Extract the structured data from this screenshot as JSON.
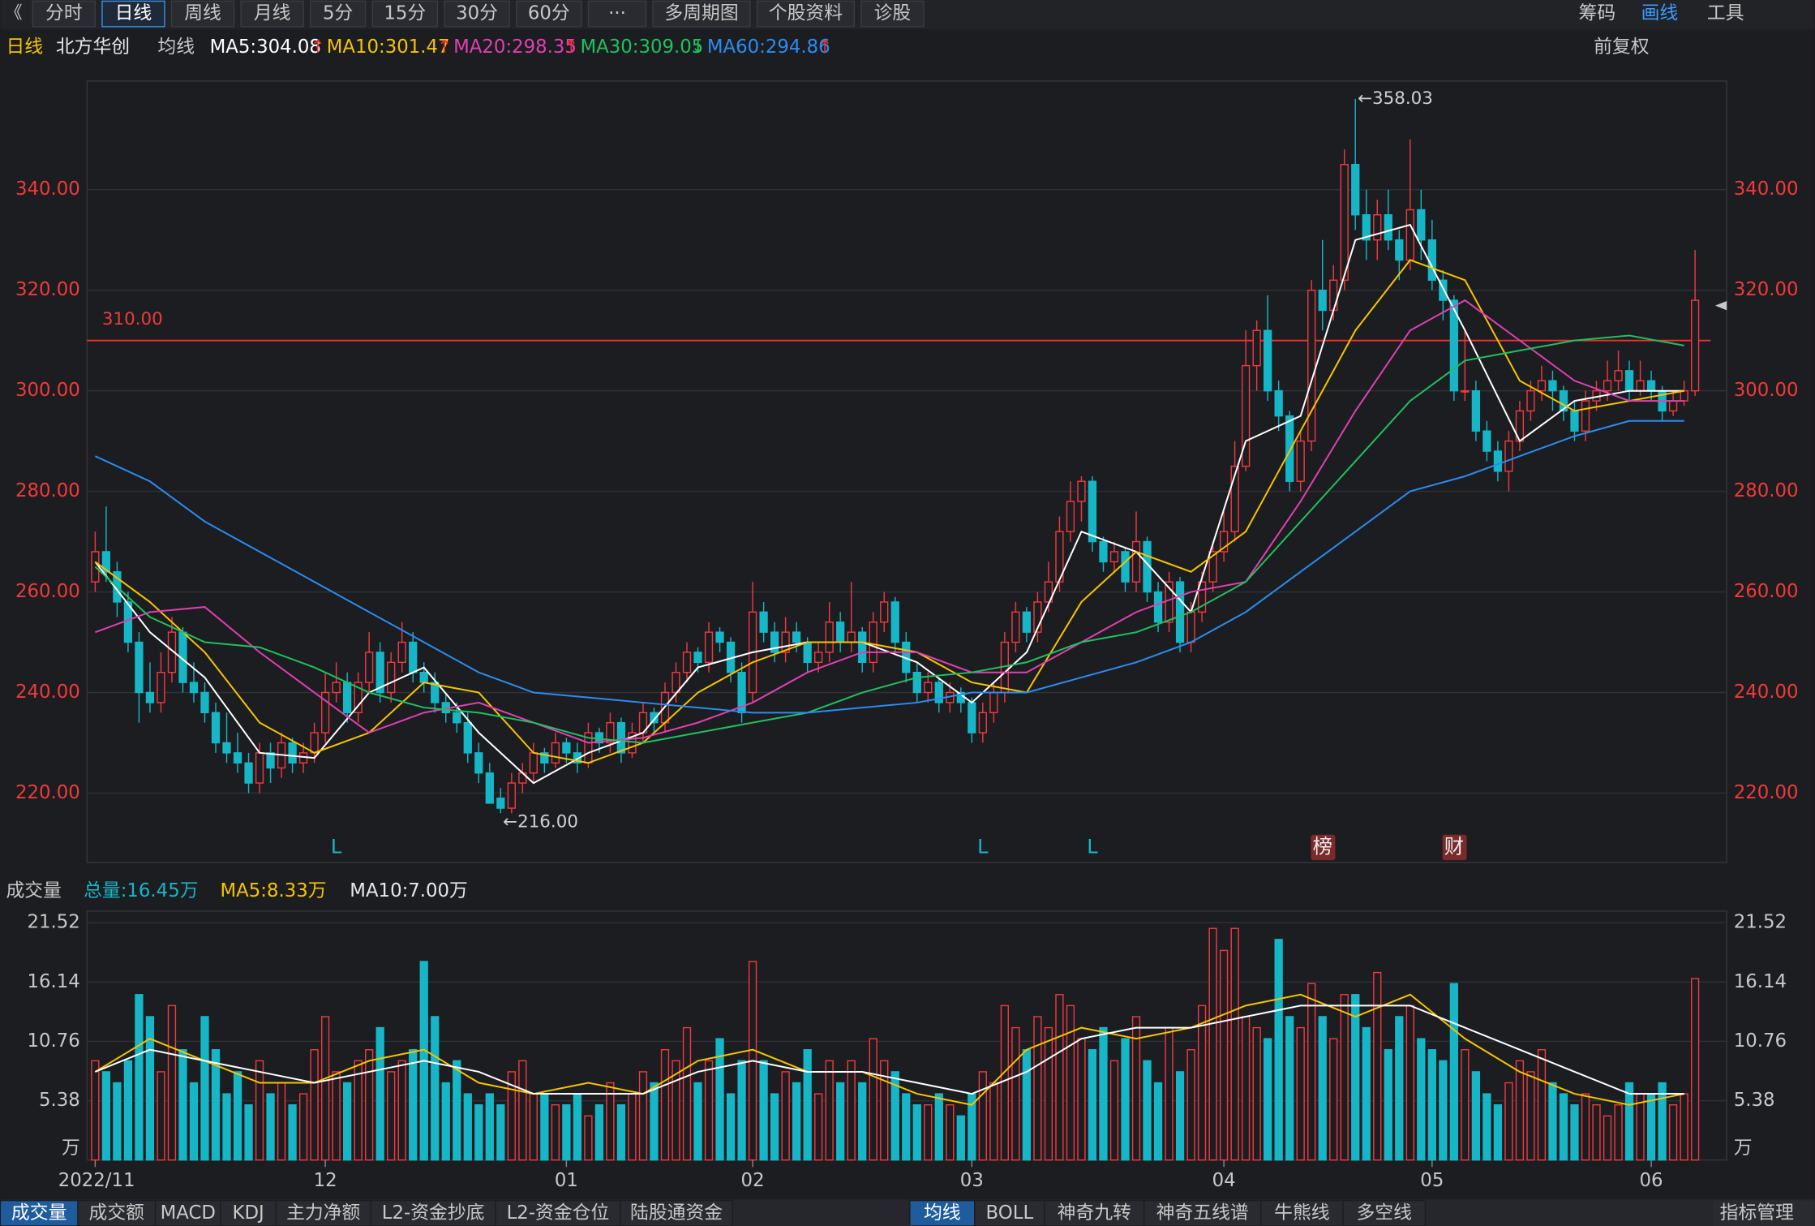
{
  "toolbar": {
    "tabs": [
      "分时",
      "日线",
      "周线",
      "月线",
      "5分",
      "15分",
      "30分",
      "60分",
      "···",
      "多周期图",
      "个股资料",
      "诊股"
    ],
    "active": 1,
    "right": [
      "筹码",
      "画线",
      "工具"
    ]
  },
  "info": {
    "period": "日线",
    "stock": "北方华创",
    "ma_label": "均线",
    "adjust": "前复权",
    "mas": [
      {
        "label": "MA5:304.08",
        "arrow": "↑",
        "color": "#ffffff"
      },
      {
        "label": "MA10:301.47",
        "arrow": "↑",
        "color": "#f5c400"
      },
      {
        "label": "MA20:298.35",
        "arrow": "↑",
        "color": "#e040b0"
      },
      {
        "label": "MA30:309.05",
        "arrow": "↓",
        "color": "#20c060"
      },
      {
        "label": "MA60:294.86",
        "arrow": "↑",
        "color": "#2a8cf0"
      }
    ]
  },
  "chart_data": {
    "type": "candlestick",
    "ylim": [
      206.2,
      361.6
    ],
    "yticks": [
      {
        "value": 220,
        "label": "220.00"
      },
      {
        "value": 240,
        "label": "240.00"
      },
      {
        "value": 260,
        "label": "260.00"
      },
      {
        "value": 280,
        "label": "280.00"
      },
      {
        "value": 300,
        "label": "300.00"
      },
      {
        "value": 320,
        "label": "320.00"
      },
      {
        "value": 340,
        "label": "340.00"
      }
    ],
    "x_labels": [
      {
        "index": 0,
        "label": "2022/11"
      },
      {
        "index": 21,
        "label": "12"
      },
      {
        "index": 43,
        "label": "01"
      },
      {
        "index": 60,
        "label": "02"
      },
      {
        "index": 80,
        "label": "03"
      },
      {
        "index": 103,
        "label": "04"
      },
      {
        "index": 122,
        "label": "05"
      },
      {
        "index": 142,
        "label": "06"
      }
    ],
    "up_color": "#f0393f",
    "down_color": "#16b6c6",
    "candles": [
      [
        262,
        272,
        260,
        268
      ],
      [
        268,
        277,
        262,
        264
      ],
      [
        264,
        266,
        255,
        258
      ],
      [
        258,
        260,
        248,
        250
      ],
      [
        250,
        252,
        234,
        240
      ],
      [
        240,
        246,
        236,
        238
      ],
      [
        238,
        248,
        236,
        244
      ],
      [
        244,
        255,
        242,
        252
      ],
      [
        252,
        253,
        240,
        242
      ],
      [
        242,
        246,
        238,
        240
      ],
      [
        240,
        242,
        234,
        236
      ],
      [
        236,
        238,
        228,
        230
      ],
      [
        230,
        236,
        226,
        228
      ],
      [
        228,
        232,
        224,
        226
      ],
      [
        226,
        228,
        220,
        222
      ],
      [
        222,
        230,
        220,
        228
      ],
      [
        228,
        230,
        222,
        225
      ],
      [
        225,
        232,
        223,
        230
      ],
      [
        230,
        231,
        224,
        226
      ],
      [
        226,
        230,
        224,
        228
      ],
      [
        228,
        234,
        226,
        232
      ],
      [
        232,
        244,
        230,
        240
      ],
      [
        240,
        246,
        238,
        242
      ],
      [
        242,
        244,
        234,
        236
      ],
      [
        236,
        244,
        234,
        242
      ],
      [
        242,
        252,
        240,
        248
      ],
      [
        248,
        250,
        238,
        240
      ],
      [
        240,
        248,
        238,
        246
      ],
      [
        246,
        254,
        244,
        250
      ],
      [
        250,
        252,
        242,
        244
      ],
      [
        244,
        246,
        240,
        242
      ],
      [
        242,
        244,
        236,
        238
      ],
      [
        238,
        240,
        234,
        236
      ],
      [
        236,
        238,
        232,
        234
      ],
      [
        234,
        236,
        226,
        228
      ],
      [
        228,
        230,
        222,
        224
      ],
      [
        224,
        226,
        218,
        218
      ],
      [
        219,
        221,
        216,
        217
      ],
      [
        217,
        224,
        216,
        222
      ],
      [
        222,
        226,
        220,
        224
      ],
      [
        224,
        230,
        222,
        228
      ],
      [
        228,
        229,
        224,
        226
      ],
      [
        226,
        232,
        225,
        230
      ],
      [
        230,
        231,
        226,
        228
      ],
      [
        228,
        230,
        224,
        226
      ],
      [
        226,
        234,
        225,
        232
      ],
      [
        232,
        233,
        228,
        230
      ],
      [
        230,
        236,
        228,
        234
      ],
      [
        234,
        235,
        226,
        228
      ],
      [
        228,
        234,
        227,
        232
      ],
      [
        232,
        238,
        230,
        236
      ],
      [
        236,
        237,
        232,
        234
      ],
      [
        234,
        242,
        232,
        240
      ],
      [
        240,
        246,
        238,
        244
      ],
      [
        244,
        250,
        242,
        248
      ],
      [
        248,
        249,
        244,
        246
      ],
      [
        246,
        254,
        244,
        252
      ],
      [
        252,
        253,
        248,
        250
      ],
      [
        250,
        251,
        242,
        244
      ],
      [
        244,
        246,
        234,
        236
      ],
      [
        240,
        262,
        238,
        256
      ],
      [
        256,
        258,
        250,
        252
      ],
      [
        252,
        254,
        246,
        248
      ],
      [
        248,
        255,
        246,
        252
      ],
      [
        252,
        254,
        248,
        250
      ],
      [
        250,
        251,
        244,
        246
      ],
      [
        246,
        250,
        244,
        248
      ],
      [
        248,
        258,
        246,
        254
      ],
      [
        254,
        256,
        248,
        250
      ],
      [
        250,
        262,
        248,
        252
      ],
      [
        252,
        253,
        244,
        246
      ],
      [
        246,
        256,
        244,
        254
      ],
      [
        254,
        260,
        252,
        258
      ],
      [
        258,
        259,
        248,
        250
      ],
      [
        250,
        252,
        242,
        244
      ],
      [
        244,
        246,
        238,
        240
      ],
      [
        240,
        244,
        238,
        242
      ],
      [
        242,
        243,
        236,
        238
      ],
      [
        238,
        242,
        236,
        240
      ],
      [
        240,
        241,
        236,
        238
      ],
      [
        238,
        239,
        230,
        232
      ],
      [
        232,
        238,
        230,
        236
      ],
      [
        236,
        242,
        234,
        240
      ],
      [
        240,
        252,
        238,
        250
      ],
      [
        250,
        258,
        248,
        256
      ],
      [
        256,
        257,
        250,
        252
      ],
      [
        252,
        260,
        250,
        258
      ],
      [
        258,
        266,
        256,
        262
      ],
      [
        262,
        275,
        260,
        272
      ],
      [
        272,
        282,
        270,
        278
      ],
      [
        278,
        283,
        274,
        282
      ],
      [
        282,
        283,
        268,
        270
      ],
      [
        270,
        271,
        264,
        266
      ],
      [
        266,
        270,
        264,
        268
      ],
      [
        268,
        269,
        260,
        262
      ],
      [
        262,
        276,
        260,
        270
      ],
      [
        270,
        271,
        258,
        260
      ],
      [
        260,
        262,
        252,
        254
      ],
      [
        254,
        264,
        252,
        262
      ],
      [
        262,
        263,
        248,
        250
      ],
      [
        250,
        258,
        248,
        256
      ],
      [
        256,
        264,
        254,
        262
      ],
      [
        262,
        270,
        260,
        268
      ],
      [
        268,
        276,
        266,
        272
      ],
      [
        272,
        290,
        270,
        285
      ],
      [
        285,
        312,
        284,
        305
      ],
      [
        305,
        314,
        300,
        312
      ],
      [
        312,
        319,
        298,
        300
      ],
      [
        300,
        302,
        292,
        295
      ],
      [
        295,
        296,
        280,
        282
      ],
      [
        282,
        292,
        280,
        290
      ],
      [
        290,
        322,
        288,
        320
      ],
      [
        320,
        330,
        312,
        316
      ],
      [
        316,
        325,
        314,
        322
      ],
      [
        322,
        348,
        320,
        345
      ],
      [
        345,
        358.03,
        332,
        335
      ],
      [
        335,
        340,
        326,
        330
      ],
      [
        330,
        338,
        326,
        335
      ],
      [
        335,
        340,
        328,
        330
      ],
      [
        330,
        332,
        322,
        326
      ],
      [
        326,
        350,
        324,
        336
      ],
      [
        336,
        340,
        326,
        330
      ],
      [
        330,
        334,
        320,
        322
      ],
      [
        322,
        324,
        314,
        318
      ],
      [
        318,
        319,
        298,
        300
      ],
      [
        300,
        312,
        298,
        300
      ],
      [
        300,
        302,
        290,
        292
      ],
      [
        292,
        294,
        286,
        288
      ],
      [
        288,
        290,
        282,
        284
      ],
      [
        284,
        292,
        280,
        290
      ],
      [
        290,
        298,
        288,
        296
      ],
      [
        296,
        302,
        294,
        300
      ],
      [
        300,
        305,
        298,
        302
      ],
      [
        302,
        304,
        296,
        300
      ],
      [
        300,
        301,
        294,
        296
      ],
      [
        296,
        298,
        290,
        292
      ],
      [
        292,
        300,
        290,
        298
      ],
      [
        298,
        302,
        296,
        300
      ],
      [
        300,
        306,
        298,
        302
      ],
      [
        302,
        308,
        300,
        304
      ],
      [
        304,
        306,
        298,
        300
      ],
      [
        300,
        306,
        299,
        302
      ],
      [
        302,
        304,
        298,
        300
      ],
      [
        300,
        301,
        294,
        296
      ],
      [
        296,
        300,
        295,
        298
      ],
      [
        298,
        302,
        297,
        300
      ],
      [
        300,
        328,
        299,
        318
      ]
    ],
    "ma_index": [
      0,
      5,
      10,
      15,
      20,
      25,
      30,
      35,
      40,
      45,
      50,
      55,
      60,
      65,
      70,
      75,
      80,
      85,
      90,
      95,
      100,
      105,
      110,
      115,
      120,
      125,
      130,
      135,
      140,
      145
    ],
    "ma_series": [
      {
        "name": "MA5",
        "color": "#ffffff",
        "values": [
          266,
          252,
          243,
          228,
          227,
          240,
          245,
          232,
          222,
          228,
          232,
          245,
          248,
          250,
          250,
          246,
          238,
          248,
          272,
          268,
          256,
          290,
          295,
          330,
          333,
          312,
          290,
          298,
          300,
          300
        ]
      },
      {
        "name": "MA10",
        "color": "#f5c400",
        "values": [
          266,
          258,
          248,
          234,
          228,
          232,
          242,
          240,
          228,
          226,
          230,
          240,
          246,
          250,
          250,
          248,
          242,
          240,
          258,
          268,
          264,
          272,
          292,
          312,
          326,
          322,
          302,
          296,
          298,
          300
        ]
      },
      {
        "name": "MA20",
        "color": "#e040b0",
        "values": [
          252,
          256,
          257,
          248,
          240,
          232,
          236,
          238,
          234,
          230,
          231,
          234,
          238,
          244,
          248,
          248,
          244,
          244,
          250,
          256,
          260,
          262,
          278,
          296,
          312,
          318,
          310,
          302,
          298,
          298
        ]
      },
      {
        "name": "MA30",
        "color": "#20c060",
        "values": [
          265,
          255,
          250,
          249,
          245,
          240,
          237,
          236,
          234,
          231,
          230,
          232,
          234,
          236,
          240,
          243,
          244,
          246,
          250,
          252,
          256,
          262,
          274,
          286,
          298,
          306,
          308,
          310,
          311,
          309
        ]
      },
      {
        "name": "MA60",
        "color": "#2a8cf0",
        "values": [
          287,
          282,
          274,
          268,
          262,
          256,
          250,
          244,
          240,
          239,
          238,
          237,
          236,
          236,
          237,
          238,
          240,
          240,
          243,
          246,
          250,
          256,
          264,
          272,
          280,
          283,
          287,
          291,
          294,
          294
        ]
      }
    ],
    "hline": {
      "value": 310,
      "label": "310.00",
      "color": "#f03030"
    },
    "annotations": [
      {
        "index": 115,
        "value": 358.03,
        "label": "←358.03"
      },
      {
        "index": 37,
        "value": 216,
        "label": "←216.00"
      }
    ],
    "markers": [
      {
        "index": 22,
        "label": "L",
        "kind": "l"
      },
      {
        "index": 81,
        "label": "L",
        "kind": "l"
      },
      {
        "index": 91,
        "label": "L",
        "kind": "l"
      },
      {
        "index": 112,
        "label": "榜",
        "kind": "box"
      },
      {
        "index": 124,
        "label": "财",
        "kind": "box"
      }
    ],
    "volume": {
      "title": "成交量",
      "total": "总量:16.45万",
      "ma5": "MA5:8.33万",
      "ma10": "MA10:7.00万",
      "ylim": [
        0,
        21.52
      ],
      "yticks": [
        {
          "value": 0,
          "label": "万"
        },
        5.38,
        10.76,
        16.14,
        21.52
      ],
      "values": [
        9,
        8,
        7,
        9,
        15,
        13,
        8,
        14,
        10,
        7,
        13,
        10,
        6,
        8,
        5,
        9,
        6,
        7,
        5,
        6,
        10,
        13,
        8,
        7,
        9,
        10,
        12,
        8,
        9,
        10,
        18,
        13,
        7,
        9,
        6,
        5,
        6,
        5,
        8,
        9,
        6,
        6,
        5,
        5,
        6,
        4,
        5,
        7,
        5,
        6,
        8,
        7,
        10,
        9,
        12,
        7,
        9,
        11,
        6,
        9,
        18,
        9,
        6,
        8,
        7,
        10,
        6,
        9,
        7,
        9,
        7,
        11,
        9,
        8,
        6,
        5,
        5,
        6,
        5,
        4,
        6,
        8,
        7,
        14,
        12,
        10,
        13,
        12,
        15,
        14,
        11,
        10,
        12,
        9,
        11,
        13,
        9,
        7,
        12,
        8,
        10,
        14,
        21,
        19,
        21,
        13,
        12,
        11,
        20,
        13,
        12,
        16,
        13,
        11,
        15,
        15,
        12,
        17,
        10,
        13,
        14,
        11,
        10,
        9,
        16,
        10,
        8,
        6,
        5,
        7,
        9,
        8,
        10,
        7,
        6,
        5,
        6,
        5,
        4,
        5,
        7,
        6,
        6,
        7,
        5,
        6,
        16.45
      ],
      "ma_series": [
        {
          "name": "MA5",
          "color": "#f5c400",
          "values": [
            8,
            11,
            9,
            7,
            7,
            9,
            10,
            7,
            6,
            7,
            6,
            9,
            10,
            8,
            8,
            6,
            5,
            10,
            12,
            11,
            12,
            14,
            15,
            13,
            15,
            11,
            8,
            6,
            5,
            6
          ]
        },
        {
          "name": "MA10",
          "color": "#ffffff",
          "values": [
            8,
            10,
            9,
            8,
            7,
            8,
            9,
            8,
            6,
            6,
            6,
            8,
            9,
            8,
            8,
            7,
            6,
            8,
            11,
            12,
            12,
            13,
            14,
            14,
            14,
            12,
            10,
            8,
            6,
            6
          ]
        }
      ]
    }
  },
  "bottom_tabs": {
    "left": [
      "成交量",
      "成交额",
      "MACD",
      "KDJ",
      "主力净额",
      "L2-资金抄底",
      "L2-资金仓位",
      "陆股通资金"
    ],
    "right": [
      "均线",
      "BOLL",
      "神奇九转",
      "神奇五线谱",
      "牛熊线",
      "多空线"
    ],
    "manage": "指标管理"
  }
}
